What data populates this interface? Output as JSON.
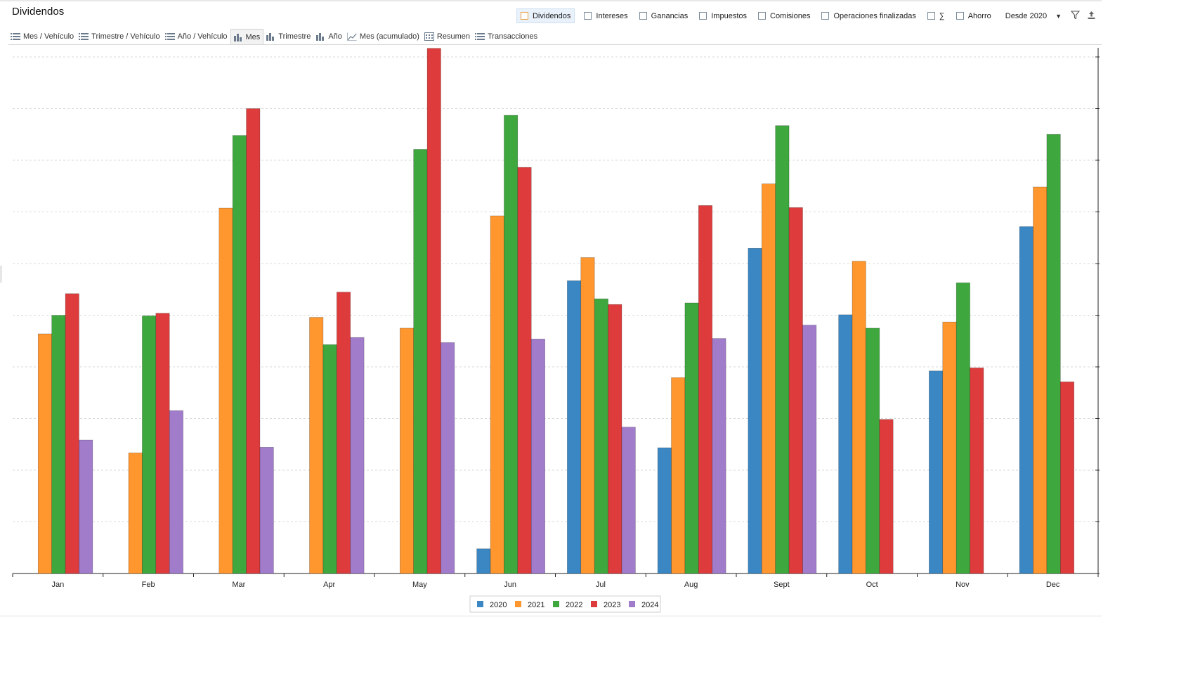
{
  "header": {
    "title": "Dividendos",
    "filters": [
      {
        "label": "Dividendos",
        "active": true
      },
      {
        "label": "Intereses",
        "active": false
      },
      {
        "label": "Ganancias",
        "active": false
      },
      {
        "label": "Impuestos",
        "active": false
      },
      {
        "label": "Comisiones",
        "active": false
      },
      {
        "label": "Operaciones finalizadas",
        "active": false
      },
      {
        "label": "∑",
        "active": false
      },
      {
        "label": "Ahorro",
        "active": false
      }
    ],
    "period": "Desde 2020"
  },
  "tabs": [
    {
      "label": "Mes / Vehículo",
      "icon": "list-icon"
    },
    {
      "label": "Trimestre / Vehículo",
      "icon": "list-icon"
    },
    {
      "label": "Año / Vehículo",
      "icon": "list-icon"
    },
    {
      "label": "Mes",
      "icon": "bar-chart-icon",
      "active": true
    },
    {
      "label": "Trimestre",
      "icon": "bar-chart-icon"
    },
    {
      "label": "Año",
      "icon": "bar-chart-icon"
    },
    {
      "label": "Mes (acumulado)",
      "icon": "line-chart-icon"
    },
    {
      "label": "Resumen",
      "icon": "calendar-icon"
    },
    {
      "label": "Transacciones",
      "icon": "list-icon"
    }
  ],
  "colors": {
    "accent": "#e8a13b",
    "grid": "#d9d9d9"
  },
  "chart_data": {
    "type": "bar",
    "categories": [
      "Jan",
      "Feb",
      "Mar",
      "Apr",
      "May",
      "Jun",
      "Jul",
      "Aug",
      "Sept",
      "Oct",
      "Nov",
      "Dec"
    ],
    "ylim": [
      0,
      10.2
    ],
    "grid": true,
    "legend_position": "bottom",
    "series": [
      {
        "name": "2020",
        "color": "#3a87c4",
        "values": [
          null,
          null,
          null,
          null,
          null,
          0.48,
          5.68,
          2.44,
          6.31,
          5.02,
          3.93,
          6.73
        ]
      },
      {
        "name": "2021",
        "color": "#ff962e",
        "values": [
          4.65,
          2.34,
          7.09,
          4.97,
          4.76,
          6.94,
          6.13,
          3.8,
          7.56,
          6.06,
          4.88,
          7.5
        ]
      },
      {
        "name": "2022",
        "color": "#3ea83e",
        "values": [
          5.01,
          5.0,
          8.5,
          4.44,
          8.23,
          8.89,
          5.33,
          5.25,
          8.69,
          4.76,
          5.64,
          8.52
        ]
      },
      {
        "name": "2023",
        "color": "#de3c3c",
        "values": [
          5.43,
          5.05,
          9.02,
          5.46,
          10.19,
          7.88,
          5.22,
          7.14,
          7.1,
          2.99,
          3.99,
          3.72
        ]
      },
      {
        "name": "2024",
        "color": "#a07ccb",
        "values": [
          2.59,
          3.16,
          2.45,
          4.58,
          4.48,
          4.55,
          2.84,
          4.56,
          4.82,
          null,
          null,
          null
        ]
      }
    ]
  }
}
